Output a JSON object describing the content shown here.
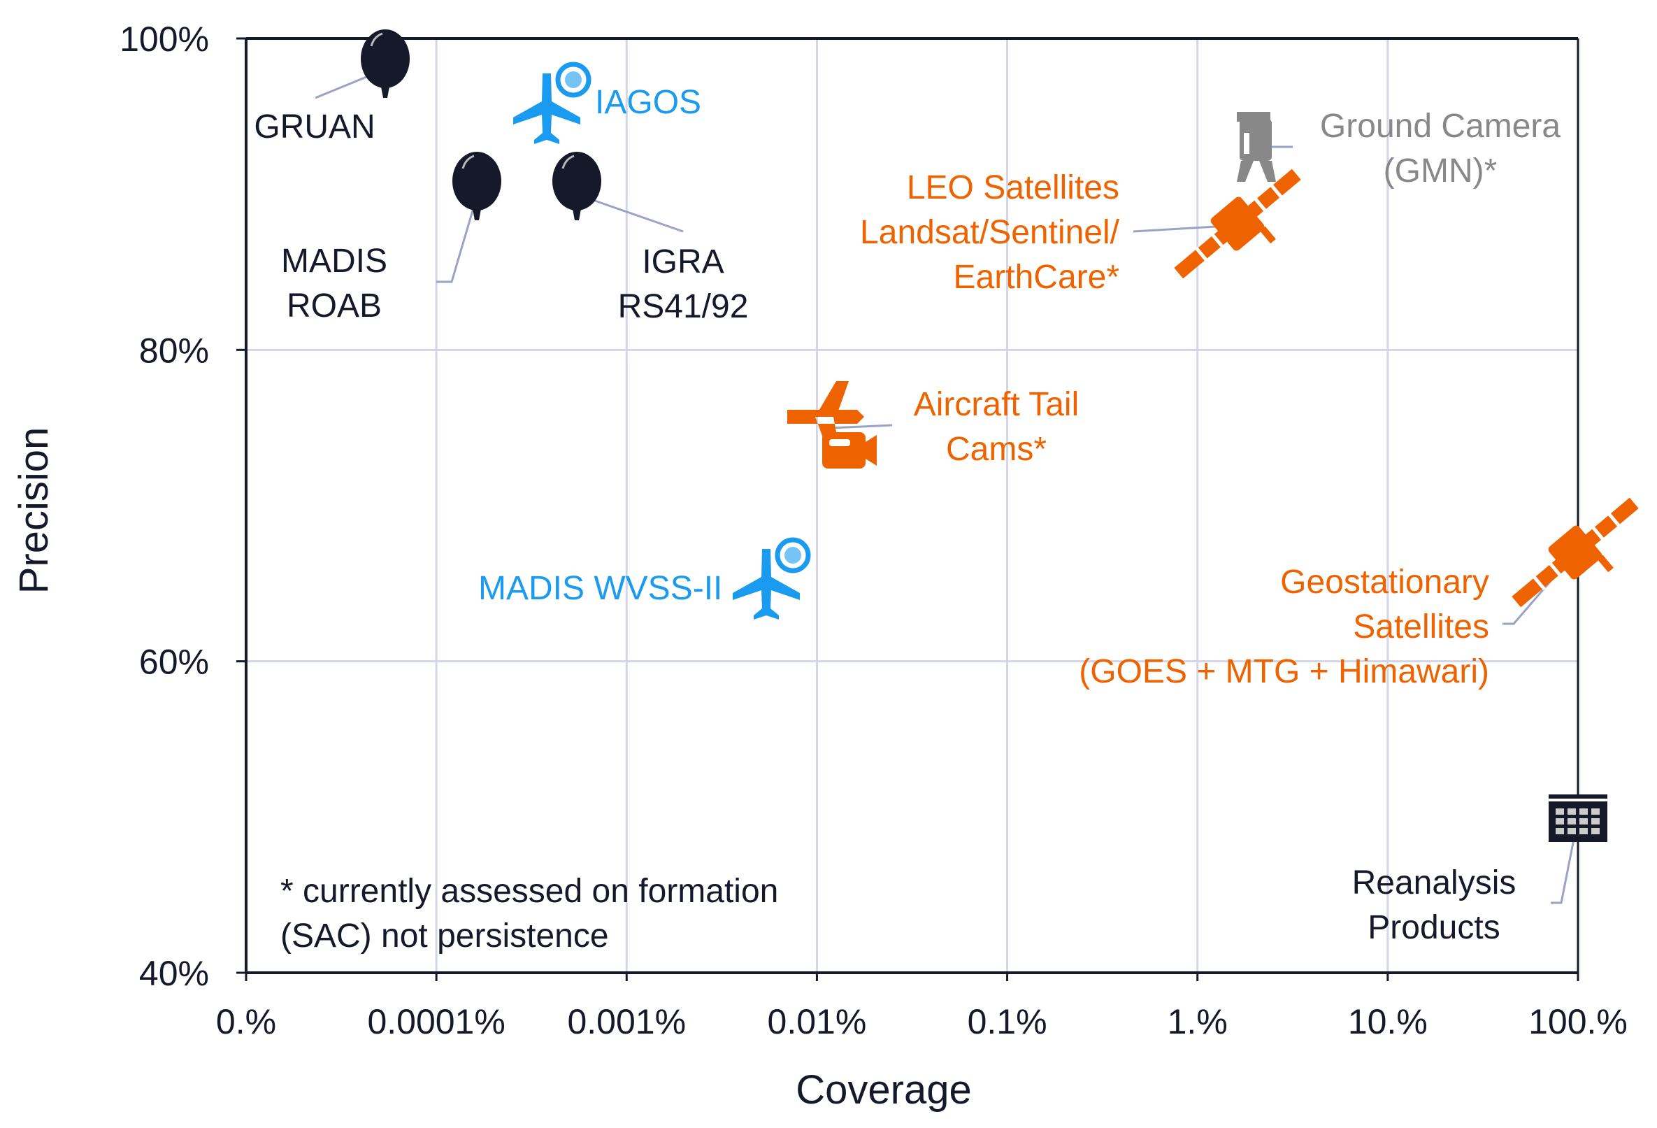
{
  "chart_data": {
    "type": "scatter",
    "xlabel": "Coverage",
    "ylabel": "Precision",
    "x_scale": "log",
    "xlim": [
      1e-05,
      100
    ],
    "ylim": [
      40,
      100
    ],
    "grid": true,
    "x_ticks": [
      {
        "value": 1e-05,
        "label": "0.%"
      },
      {
        "value": 0.0001,
        "label": "0.0001%"
      },
      {
        "value": 0.001,
        "label": "0.001%"
      },
      {
        "value": 0.01,
        "label": "0.01%"
      },
      {
        "value": 0.1,
        "label": "0.1%"
      },
      {
        "value": 1,
        "label": "1.%"
      },
      {
        "value": 10,
        "label": "10.%"
      },
      {
        "value": 100,
        "label": "100.%"
      }
    ],
    "y_ticks": [
      {
        "value": 100,
        "label": "100%"
      },
      {
        "value": 80,
        "label": "80%"
      },
      {
        "value": 60,
        "label": "60%"
      },
      {
        "value": 40,
        "label": "40%"
      }
    ],
    "points": [
      {
        "label": [
          "GRUAN"
        ],
        "x": 5e-05,
        "y": 98,
        "icon": "balloon-icon",
        "color": "#15192a"
      },
      {
        "label": [
          "IAGOS"
        ],
        "x": 0.00038,
        "y": 96,
        "icon": "airplane-icon",
        "color": "#1a9bf0"
      },
      {
        "label": [
          "MADIS",
          "ROAB"
        ],
        "x": 0.00016,
        "y": 90.3,
        "icon": "balloon-icon",
        "color": "#15192a"
      },
      {
        "label": [
          "IGRA",
          "RS41/92"
        ],
        "x": 0.00054,
        "y": 90.3,
        "icon": "balloon-icon",
        "color": "#15192a"
      },
      {
        "label": [
          "Ground Camera",
          "(GMN)*"
        ],
        "x": 2.0,
        "y": 93,
        "icon": "camera-tripod-icon",
        "color": "#888888"
      },
      {
        "label": [
          "LEO Satellites",
          "Landsat/Sentinel/",
          "EarthCare*"
        ],
        "x": 2.1,
        "y": 88,
        "icon": "satellite-icon",
        "color": "#ee6200"
      },
      {
        "label": [
          "Aircraft Tail",
          "Cams*"
        ],
        "x": 0.013,
        "y": 75,
        "icon": "airplane-camera-icon",
        "color": "#ee6200"
      },
      {
        "label": [
          "MADIS WVSS-II"
        ],
        "x": 0.0053,
        "y": 65,
        "icon": "airplane-icon",
        "color": "#1a9bf0"
      },
      {
        "label": [
          "Geostationary",
          "Satellites",
          "(GOES + MTG + Himawari)"
        ],
        "x": 96,
        "y": 67,
        "icon": "satellite-icon",
        "color": "#ee6200"
      },
      {
        "label": [
          "Reanalysis",
          "Products"
        ],
        "x": 100,
        "y": 50,
        "icon": "data-grid-icon",
        "color": "#15192a"
      }
    ],
    "annotation": [
      "* currently assessed on formation",
      "(SAC) not persistence"
    ]
  }
}
